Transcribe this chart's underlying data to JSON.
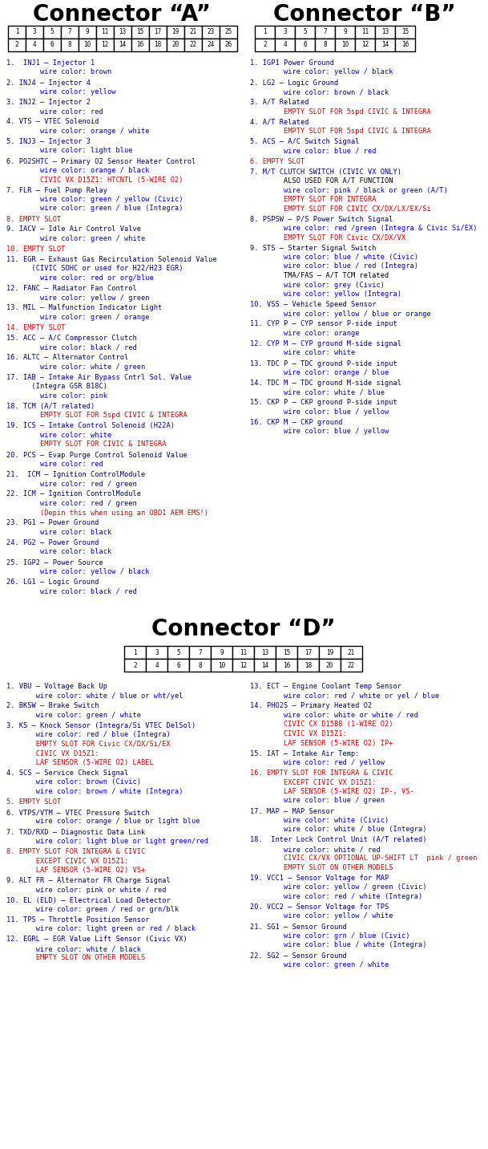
{
  "title_a": "Connector “A”",
  "title_b": "Connector “B”",
  "title_d": "Connector “D”",
  "connector_a_rows": [
    [
      "1",
      "3",
      "5",
      "7",
      "9",
      "11",
      "13",
      "15",
      "17",
      "19",
      "21",
      "23",
      "25"
    ],
    [
      "2",
      "4",
      "6",
      "8",
      "10",
      "12",
      "14",
      "16",
      "18",
      "20",
      "22",
      "24",
      "26"
    ]
  ],
  "connector_b_rows": [
    [
      "1",
      "3",
      "5",
      "7",
      "9",
      "11",
      "13",
      "15"
    ],
    [
      "2",
      "4",
      "6",
      "8",
      "10",
      "12",
      "14",
      "16"
    ]
  ],
  "connector_d_rows": [
    [
      "1",
      "3",
      "5",
      "7",
      "9",
      "11",
      "13",
      "15",
      "17",
      "19",
      "21"
    ],
    [
      "2",
      "4",
      "6",
      "8",
      "10",
      "12",
      "14",
      "16",
      "18",
      "20",
      "22"
    ]
  ],
  "connector_a_items": [
    [
      [
        "1.  INJ1 – Injector 1",
        "#000080"
      ],
      [
        "        wire color: brown",
        "#0000cc"
      ]
    ],
    [
      [
        "2. INJ4 – Injector 4",
        "#000080"
      ],
      [
        "        wire color: yellow",
        "#0000cc"
      ]
    ],
    [
      [
        "3. INJ2 – Injector 2",
        "#000080"
      ],
      [
        "        wire color: red",
        "#0000cc"
      ]
    ],
    [
      [
        "4. VTS – VTEC Solenoid",
        "#000080"
      ],
      [
        "        wire color: orange / white",
        "#0000cc"
      ]
    ],
    [
      [
        "5. INJ3 – Injector 3",
        "#000080"
      ],
      [
        "        wire color: light blue",
        "#0000cc"
      ]
    ],
    [
      [
        "6. PO2SHTC – Primary O2 Sensor Heater Control",
        "#000080"
      ],
      [
        "        wire color: orange / black",
        "#0000cc"
      ],
      [
        "        CIVIC VX D15Z1: HTCNTL (5-WIRE O2)",
        "#cc0000"
      ]
    ],
    [
      [
        "7. FLR – Fuel Pump Relay",
        "#000080"
      ],
      [
        "        wire color: green / yellow (Civic)",
        "#0000cc"
      ],
      [
        "        wire color: green / blue (Integra)",
        "#0000cc"
      ]
    ],
    [
      [
        "8. EMPTY SLOT",
        "#cc0000"
      ]
    ],
    [
      [
        "9. IACV – Idle Air Control Valve",
        "#000080"
      ],
      [
        "        wire color: green / white",
        "#0000cc"
      ]
    ],
    [
      [
        "10. EMPTY SLOT",
        "#cc0000"
      ]
    ],
    [
      [
        "11. EGR – Exhaust Gas Recirculation Solenoid Value",
        "#000080"
      ],
      [
        "      (CIVIC SOHC or used for H22/H23 EGR)",
        "#000080"
      ],
      [
        "        wire color: red or org/blue",
        "#0000cc"
      ]
    ],
    [
      [
        "12. FANC – Radiator Fan Control",
        "#000080"
      ],
      [
        "        wire color: yellow / green",
        "#0000cc"
      ]
    ],
    [
      [
        "13. MIL – Malfunction Indicator Light",
        "#000080"
      ],
      [
        "        wire color: green / orange",
        "#0000cc"
      ]
    ],
    [
      [
        "14. EMPTY SLOT",
        "#cc0000"
      ]
    ],
    [
      [
        "15. ACC – A/C Compressor Clutch",
        "#000080"
      ],
      [
        "        wire color: black / red",
        "#0000cc"
      ]
    ],
    [
      [
        "16. ALTC – Alternator Control",
        "#000080"
      ],
      [
        "        wire color: white / green",
        "#0000cc"
      ]
    ],
    [
      [
        "17. IAB – Intake Air Bypass Cntrl Sol. Value",
        "#000080"
      ],
      [
        "      (Integra GSR B18C)",
        "#000080"
      ],
      [
        "        wire color: pink",
        "#0000cc"
      ]
    ],
    [
      [
        "18. TCM (A/T related)",
        "#000080"
      ],
      [
        "        EMPTY SLOT FOR 5spd CIVIC & INTEGRA",
        "#cc0000"
      ]
    ],
    [
      [
        "19. ICS – Intake Control Solenoid (H22A)",
        "#000080"
      ],
      [
        "        wire color: white",
        "#0000cc"
      ],
      [
        "        EMPTY SLOT FOR CIVIC & INTEGRA",
        "#cc0000"
      ]
    ],
    [
      [
        "20. PCS – Evap Purge Control Solenoid Value",
        "#000080"
      ],
      [
        "        wire color: red",
        "#0000cc"
      ]
    ],
    [
      [
        "21.  ICM – Ignition ControlModule",
        "#000080"
      ],
      [
        "        wire color: red / green",
        "#0000cc"
      ]
    ],
    [
      [
        "22. ICM – Ignition ControlModule",
        "#000080"
      ],
      [
        "        wire color: red / green",
        "#0000cc"
      ],
      [
        "        (Depin this when using an OBD1 AEM EMS!)",
        "#cc0000"
      ]
    ],
    [
      [
        "23. PG1 – Power Ground",
        "#000080"
      ],
      [
        "        wire color: black",
        "#0000cc"
      ]
    ],
    [
      [
        "24. PG2 – Power Ground",
        "#000080"
      ],
      [
        "        wire color: black",
        "#0000cc"
      ]
    ],
    [
      [
        "25. IGP2 – Power Source",
        "#000080"
      ],
      [
        "        wire color: yellow / black",
        "#0000cc"
      ]
    ],
    [
      [
        "26. LG1 – Logic Ground",
        "#000080"
      ],
      [
        "        wire color: black / red",
        "#0000cc"
      ]
    ]
  ],
  "connector_b_items": [
    [
      [
        "1. IGP1 Power Ground",
        "#000080"
      ],
      [
        "        wire color: yellow / black",
        "#0000cc"
      ]
    ],
    [
      [
        "2. LG2 – Logic Ground",
        "#000080"
      ],
      [
        "        wire color: brown / black",
        "#0000cc"
      ]
    ],
    [
      [
        "3. A/T Related",
        "#000080"
      ],
      [
        "        EMPTY SLOT FOR 5spd CIVIC & INTEGRA",
        "#cc0000"
      ]
    ],
    [
      [
        "4. A/T Related",
        "#000080"
      ],
      [
        "        EMPTY SLOT FOR 5spd CIVIC & INTEGRA",
        "#cc0000"
      ]
    ],
    [
      [
        "5. ACS – A/C Switch Signal",
        "#000080"
      ],
      [
        "        wire color: blue / red",
        "#0000cc"
      ]
    ],
    [
      [
        "6. EMPTY SLOT",
        "#cc0000"
      ]
    ],
    [
      [
        "7. M/T CLUTCH SWITCH (CIVIC VX ONLY)",
        "#000080"
      ],
      [
        "        ALSO USED FOR A/T FUNCTION",
        "#000000"
      ],
      [
        "        wire color: pink / black or green (A/T)",
        "#0000cc"
      ],
      [
        "        EMPTY SLOT FOR INTEGRA",
        "#cc0000"
      ],
      [
        "        EMPTY SLOT FOR CIVIC CX/DX/LX/EX/Si",
        "#cc0000"
      ]
    ],
    [
      [
        "8. PSPSW – P/S Power Switch Signal",
        "#000080"
      ],
      [
        "        wire color: red /green (Integra & Civic Si/EX)",
        "#0000cc"
      ],
      [
        "        EMPTY SLOT FOR Civic CX/DX/VX",
        "#cc0000"
      ]
    ],
    [
      [
        "9. STS – Starter Signal Switch",
        "#000080"
      ],
      [
        "        wire color: blue / white (Civic)",
        "#0000cc"
      ],
      [
        "        wire color: blue / red (Integra)",
        "#0000cc"
      ],
      [
        "        TMA/FAS – A/T TCM related",
        "#000000"
      ],
      [
        "        wire color: grey (Civic)",
        "#0000cc"
      ],
      [
        "        wire color: yellow (Integra)",
        "#0000cc"
      ]
    ],
    [
      [
        "10. VSS – Vehicle Speed Sensor",
        "#000080"
      ],
      [
        "        wire color: yellow / blue or orange",
        "#0000cc"
      ]
    ],
    [
      [
        "11. CYP P – CYP sensor P-side input",
        "#000080"
      ],
      [
        "        wire color: orange",
        "#0000cc"
      ]
    ],
    [
      [
        "12. CYP M – CYP ground M-side signal",
        "#000080"
      ],
      [
        "        wire color: white",
        "#0000cc"
      ]
    ],
    [
      [
        "13. TDC P – TDC ground P-side input",
        "#000080"
      ],
      [
        "        wire color: orange / blue",
        "#0000cc"
      ]
    ],
    [
      [
        "14. TDC M – TDC ground M-side signal",
        "#000080"
      ],
      [
        "        wire color: white / blue",
        "#0000cc"
      ]
    ],
    [
      [
        "15. CKP P – CKP ground P-side input",
        "#000080"
      ],
      [
        "        wire color: blue / yellow",
        "#0000cc"
      ]
    ],
    [
      [
        "16. CKP M – CKP ground",
        "#000080"
      ],
      [
        "        wire color: blue / yellow",
        "#0000cc"
      ]
    ]
  ],
  "connector_d_left": [
    [
      [
        "1. VBU – Voltage Back Up",
        "#000080"
      ],
      [
        "       wire color: white / blue or wht/yel",
        "#0000cc"
      ]
    ],
    [
      [
        "2. BKSW – Brake Switch",
        "#000080"
      ],
      [
        "       wire color: green / white",
        "#0000cc"
      ]
    ],
    [
      [
        "3. KS – Knock Sensor (Integra/Si VTEC DelSol)",
        "#000080"
      ],
      [
        "       wire color: red / blue (Integra)",
        "#0000cc"
      ],
      [
        "       EMPTY SLOT FOR Civic CX/DX/Si/EX",
        "#cc0000"
      ],
      [
        "       CIVIC VX D15Z1:",
        "#cc0000"
      ],
      [
        "       LAF SENSOR (5-WIRE O2) LABEL",
        "#cc0000"
      ]
    ],
    [
      [
        "4. SCS – Service Check Signal",
        "#000080"
      ],
      [
        "       wire color: brown (Civic)",
        "#0000cc"
      ],
      [
        "       wire color: brown / white (Integra)",
        "#0000cc"
      ]
    ],
    [
      [
        "5. EMPTY SLOT",
        "#cc0000"
      ]
    ],
    [
      [
        "6. VTPS/VTM – VTEC Pressure Switch",
        "#000080"
      ],
      [
        "       wire color: orange / blue or light blue",
        "#0000cc"
      ]
    ],
    [
      [
        "7. TXD/RXD – Diagnostic Data Link",
        "#000080"
      ],
      [
        "       wire color: light blue or light green/red",
        "#0000cc"
      ]
    ],
    [
      [
        "8. EMPTY SLOT FOR INTEGRA & CIVIC",
        "#cc0000"
      ],
      [
        "       EXCEPT CIVIC VX D15Z1:",
        "#cc0000"
      ],
      [
        "       LAF SENSOR (5-WIRE O2) VS+",
        "#cc0000"
      ]
    ],
    [
      [
        "9. ALT FR – Alternator FR Charge Signal",
        "#000080"
      ],
      [
        "       wire color: pink or white / red",
        "#0000cc"
      ]
    ],
    [
      [
        "10. EL (ELD) – Electrical Load Detector",
        "#000080"
      ],
      [
        "       wire color: green / red or grn/blk",
        "#0000cc"
      ]
    ],
    [
      [
        "11. TPS – Throttle Position Sensor",
        "#000080"
      ],
      [
        "       wire color: light green or red / black",
        "#0000cc"
      ]
    ],
    [
      [
        "12. EGRL – EGR Value Lift Sensor (Civic VX)",
        "#000080"
      ],
      [
        "       wire color: white / black",
        "#0000cc"
      ],
      [
        "       EMPTY SLOT ON OTHER MODELS",
        "#cc0000"
      ]
    ]
  ],
  "connector_d_right": [
    [
      [
        "13. ECT – Engine Coolant Temp Sensor",
        "#000080"
      ],
      [
        "        wire color: red / white or yel / blue",
        "#0000cc"
      ]
    ],
    [
      [
        "14. PHO2S – Primary Heated O2",
        "#000080"
      ],
      [
        "        wire color: white or white / red",
        "#0000cc"
      ],
      [
        "        CIVIC CX D15B8 (1-WIRE O2)",
        "#cc0000"
      ],
      [
        "        CIVIC VX D15Z1:",
        "#cc0000"
      ],
      [
        "        LAF SENSOR (5-WIRE O2) IP+",
        "#cc0000"
      ]
    ],
    [
      [
        "15. IAT – Intake Air Temp:",
        "#000080"
      ],
      [
        "        wire color: red / yellow",
        "#0000cc"
      ]
    ],
    [
      [
        "16. EMPTY SLOT FOR INTEGRA & CIVIC",
        "#cc0000"
      ],
      [
        "        EXCEPT CIVIC VX D15Z1:",
        "#cc0000"
      ],
      [
        "        LAF SENSOR (5-WIRE O2) IP-, VS-",
        "#cc0000"
      ],
      [
        "        wire color: blue / green",
        "#0000cc"
      ]
    ],
    [
      [
        "17. MAP – MAP Sensor",
        "#000080"
      ],
      [
        "        wire color: white (Civic)",
        "#0000cc"
      ],
      [
        "        wire color: white / blue (Integra)",
        "#0000cc"
      ]
    ],
    [
      [
        "18.  Inter Lock Control Unit (A/T related)",
        "#000080"
      ],
      [
        "        wire color: white / red",
        "#0000cc"
      ],
      [
        "        CIVIC CX/VX OPTIONAL UP-SHIFT LT  pink / green",
        "#cc0000"
      ],
      [
        "        EMPTY SLOT ON OTHER MODELS",
        "#cc0000"
      ]
    ],
    [
      [
        "19. VCC1 – Sensor Voltage for MAP",
        "#000080"
      ],
      [
        "        wire color: yellow / green (Civic)",
        "#0000cc"
      ],
      [
        "        wire color: red / white (Integra)",
        "#0000cc"
      ]
    ],
    [
      [
        "20. VCC2 – Sensor Voltage for TPS",
        "#000080"
      ],
      [
        "        wire color: yellow / white",
        "#0000cc"
      ]
    ],
    [
      [
        "21. SG1 – Sensor Ground",
        "#000080"
      ],
      [
        "        wire color: grn / blue (Civic)",
        "#0000cc"
      ],
      [
        "        wire color: blue / white (Integra)",
        "#0000cc"
      ]
    ],
    [
      [
        "22. SG2 – Sensor Ground",
        "#000080"
      ],
      [
        "        wire color: green / white",
        "#0000cc"
      ]
    ]
  ]
}
